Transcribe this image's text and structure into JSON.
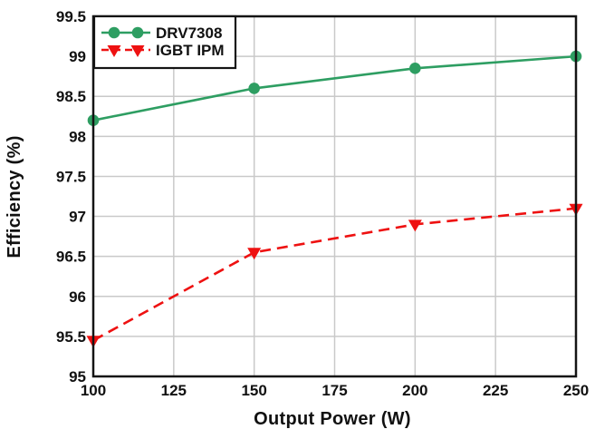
{
  "chart_data": {
    "type": "line",
    "title": "",
    "xlabel": "Output Power (W)",
    "ylabel": "Efficiency (%)",
    "x": [
      100,
      150,
      200,
      250
    ],
    "series": [
      {
        "name": "DRV7308",
        "values": [
          98.2,
          98.6,
          98.85,
          99.0
        ],
        "color": "#2e9e62",
        "marker": "circle",
        "line_style": "solid"
      },
      {
        "name": "IGBT IPM",
        "values": [
          95.45,
          96.55,
          96.9,
          97.1
        ],
        "color": "#ee1111",
        "marker": "triangle-down",
        "line_style": "dashed"
      }
    ],
    "xlim": [
      100,
      250
    ],
    "ylim": [
      95,
      99.5
    ],
    "x_ticks": [
      100,
      125,
      150,
      175,
      200,
      225,
      250
    ],
    "y_ticks": [
      95,
      95.5,
      96,
      96.5,
      97,
      97.5,
      98,
      98.5,
      99,
      99.5
    ],
    "grid": true,
    "legend": {
      "position": "upper-left",
      "entries": [
        "DRV7308",
        "IGBT IPM"
      ]
    },
    "styles": {
      "grid_color": "#c9c9c9",
      "spine_color": "#141414",
      "text_color": "#111111",
      "plot_background": "#ffffff"
    }
  }
}
